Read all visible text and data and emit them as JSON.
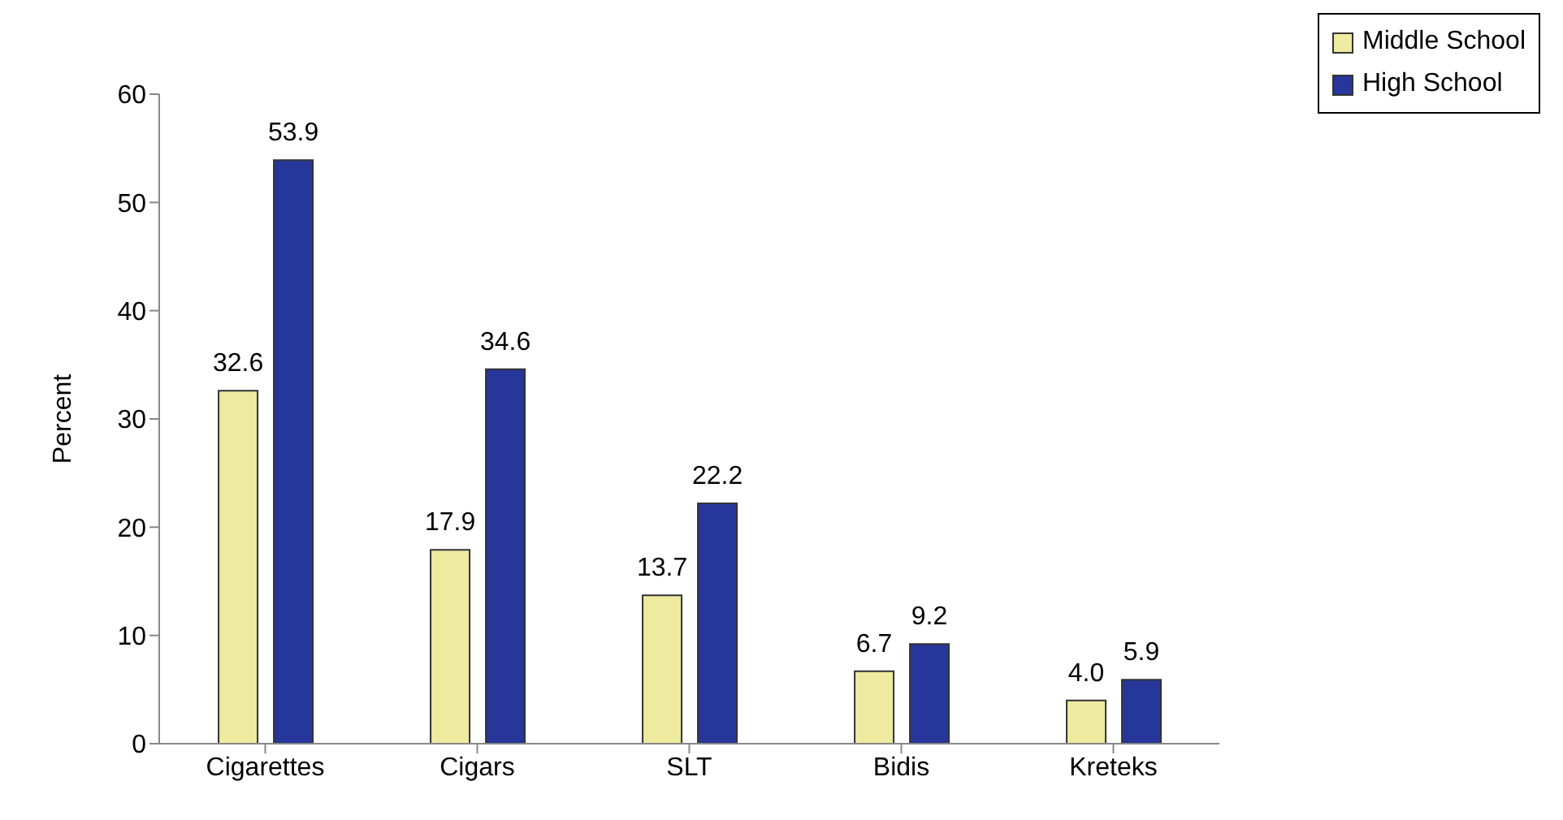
{
  "chart_data": {
    "type": "bar",
    "ylabel": "Percent",
    "categories": [
      "Cigarettes",
      "Cigars",
      "SLT",
      "Bidis",
      "Kreteks"
    ],
    "series": [
      {
        "name": "Middle School",
        "color": "#eeeaa0",
        "values": [
          32.6,
          17.9,
          13.7,
          6.7,
          4.0
        ],
        "value_labels": [
          "32.6",
          "17.9",
          "13.7",
          "6.7",
          "4.0"
        ]
      },
      {
        "name": "High School",
        "color": "#27369a",
        "values": [
          53.9,
          34.6,
          22.2,
          9.2,
          5.9
        ],
        "value_labels": [
          "53.9",
          "34.6",
          "22.2",
          "9.2",
          "5.9"
        ]
      }
    ],
    "ylim": [
      0,
      60
    ],
    "yticks": [
      0,
      10,
      20,
      30,
      40,
      50,
      60
    ],
    "grid": false,
    "legend": "top right"
  }
}
